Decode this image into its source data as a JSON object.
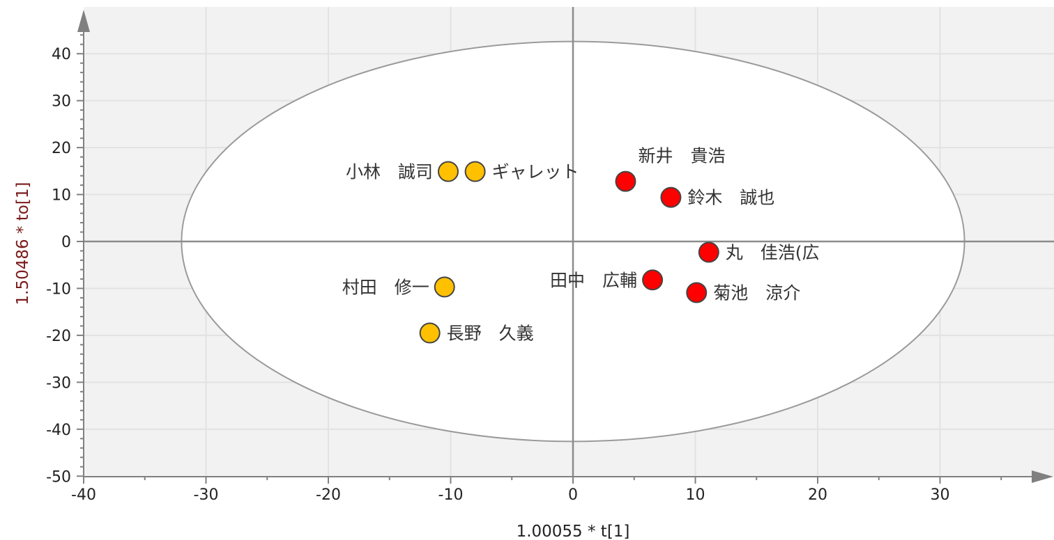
{
  "chart_data": {
    "type": "scatter",
    "title": "",
    "xlabel": "1.00055 * t[1]",
    "ylabel": "1.50486 * to[1]",
    "xlim": [
      -40,
      39
    ],
    "ylim": [
      -50,
      50
    ],
    "xticks": [
      -40,
      -30,
      -20,
      -10,
      0,
      10,
      20,
      30
    ],
    "yticks": [
      -50,
      -40,
      -30,
      -20,
      -10,
      0,
      10,
      20,
      30,
      40
    ],
    "grid": true,
    "ellipse": {
      "center": [
        0,
        0
      ],
      "rx": 32,
      "ry": 42.6
    },
    "colors": {
      "group_a": "#ffc000",
      "group_b": "#ff0000",
      "shaded": "#f2f2f2",
      "ellipse_fill": "#ffffff"
    },
    "points": [
      {
        "label": "小林　誠司",
        "x": -10.2,
        "y": 14.9,
        "color": "#ffc000",
        "label_side": "left"
      },
      {
        "label": "ギャレット",
        "x": -8,
        "y": 14.9,
        "color": "#ffc000",
        "label_side": "right"
      },
      {
        "label": "村田　修一",
        "x": -10.5,
        "y": -9.7,
        "color": "#ffc000",
        "label_side": "left"
      },
      {
        "label": "長野　久義",
        "x": -11.7,
        "y": -19.5,
        "color": "#ffc000",
        "label_side": "right"
      },
      {
        "label": "新井　貴浩",
        "x": 4.3,
        "y": 12.8,
        "color": "#ff0000",
        "label_side": "above"
      },
      {
        "label": "鈴木　誠也",
        "x": 8,
        "y": 9.4,
        "color": "#ff0000",
        "label_side": "right"
      },
      {
        "label": "丸　佳浩(広",
        "x": 11.1,
        "y": -2.3,
        "color": "#ff0000",
        "label_side": "right"
      },
      {
        "label": "田中　広輔",
        "x": 6.5,
        "y": -8.2,
        "color": "#ff0000",
        "label_side": "left"
      },
      {
        "label": "菊池　涼介",
        "x": 10.1,
        "y": -10.9,
        "color": "#ff0000",
        "label_side": "right"
      }
    ]
  }
}
